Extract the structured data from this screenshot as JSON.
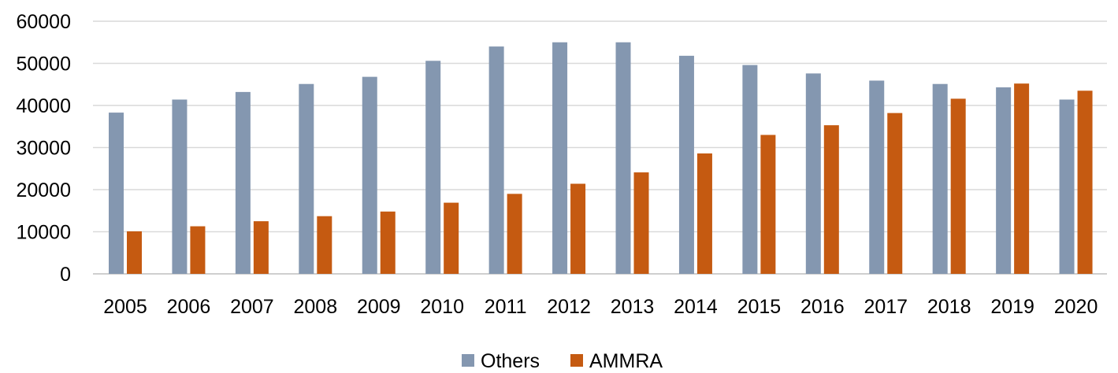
{
  "chart_data": {
    "type": "bar",
    "title": "",
    "xlabel": "",
    "ylabel": "",
    "categories": [
      "2005",
      "2006",
      "2007",
      "2008",
      "2009",
      "2010",
      "2011",
      "2012",
      "2013",
      "2014",
      "2015",
      "2016",
      "2017",
      "2018",
      "2019",
      "2020"
    ],
    "series": [
      {
        "name": "Others",
        "color": "#8497b0",
        "values": [
          38300,
          41400,
          43200,
          45100,
          46800,
          50600,
          54000,
          55000,
          55000,
          51800,
          49600,
          47600,
          45900,
          45100,
          44300,
          41400
        ]
      },
      {
        "name": "AMMRA",
        "color": "#c55a11",
        "values": [
          10100,
          11300,
          12500,
          13700,
          14800,
          16900,
          19000,
          21400,
          24100,
          28600,
          33000,
          35300,
          38200,
          41600,
          45200,
          43500
        ]
      }
    ],
    "ylim": [
      0,
      60000
    ],
    "yticks": [
      "0",
      "10000",
      "20000",
      "30000",
      "40000",
      "50000",
      "60000"
    ],
    "grid": true,
    "legend_position": "bottom-center"
  }
}
